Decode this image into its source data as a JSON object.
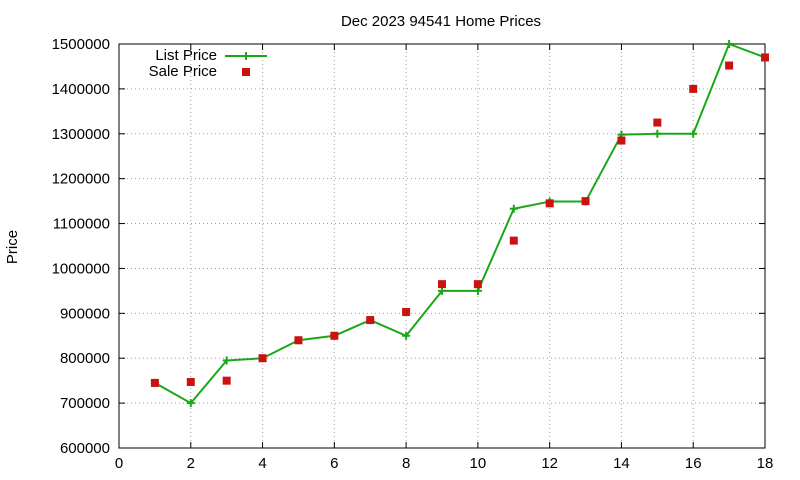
{
  "chart_data": {
    "type": "line",
    "title": "Dec 2023 94541 Home Prices",
    "xlabel": "",
    "ylabel": "Price",
    "xlim": [
      0,
      18
    ],
    "ylim": [
      600000,
      1500000
    ],
    "xticks": [
      0,
      2,
      4,
      6,
      8,
      10,
      12,
      14,
      16,
      18
    ],
    "yticks": [
      600000,
      700000,
      800000,
      900000,
      1000000,
      1100000,
      1200000,
      1300000,
      1400000,
      1500000
    ],
    "grid": true,
    "legend_position": "top-left",
    "series": [
      {
        "name": "List Price",
        "style": "line-with-plus-markers",
        "color": "#1aa81a",
        "x": [
          1,
          2,
          3,
          4,
          5,
          6,
          7,
          8,
          9,
          10,
          11,
          12,
          13,
          14,
          15,
          16,
          17,
          18
        ],
        "y": [
          745000,
          700000,
          795000,
          800000,
          840000,
          850000,
          885000,
          850000,
          950000,
          950000,
          1133000,
          1149000,
          1149000,
          1298000,
          1300000,
          1300000,
          1500000,
          1470000
        ]
      },
      {
        "name": "Sale Price",
        "style": "square-points",
        "color": "#cc1111",
        "x": [
          1,
          2,
          3,
          4,
          5,
          6,
          7,
          8,
          9,
          10,
          11,
          12,
          13,
          14,
          15,
          16,
          17,
          18
        ],
        "y": [
          745000,
          747000,
          750000,
          800000,
          840000,
          850000,
          885000,
          903000,
          965000,
          965000,
          1062000,
          1145000,
          1150000,
          1285000,
          1325000,
          1400000,
          1452000,
          1470000
        ]
      }
    ]
  }
}
